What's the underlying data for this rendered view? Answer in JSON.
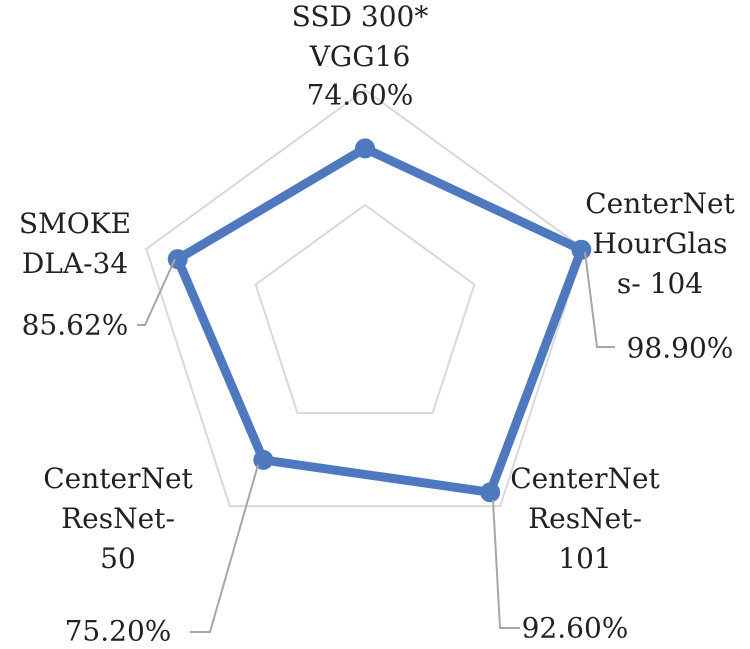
{
  "chart_data": {
    "type": "radar",
    "categories": [
      "SSD 300*\nVGG16",
      "CenterNet\nHourGlas\ns- 104",
      "CenterNet\nResNet-\n101",
      "CenterNet\nResNet-\n50",
      "SMOKE\nDLA-34"
    ],
    "series": [
      {
        "color": "#4e79bf",
        "values": [
          74.6,
          98.9,
          92.6,
          75.2,
          85.62
        ],
        "value_labels": [
          "74.60%",
          "98.90%",
          "92.60%",
          "75.20%",
          "85.62%"
        ]
      }
    ],
    "rlim": [
      0,
      100
    ],
    "rticks": [
      50,
      100
    ],
    "grid": true,
    "grid_color": "#d9d9d9",
    "leader_color": "#a6a6a6"
  }
}
